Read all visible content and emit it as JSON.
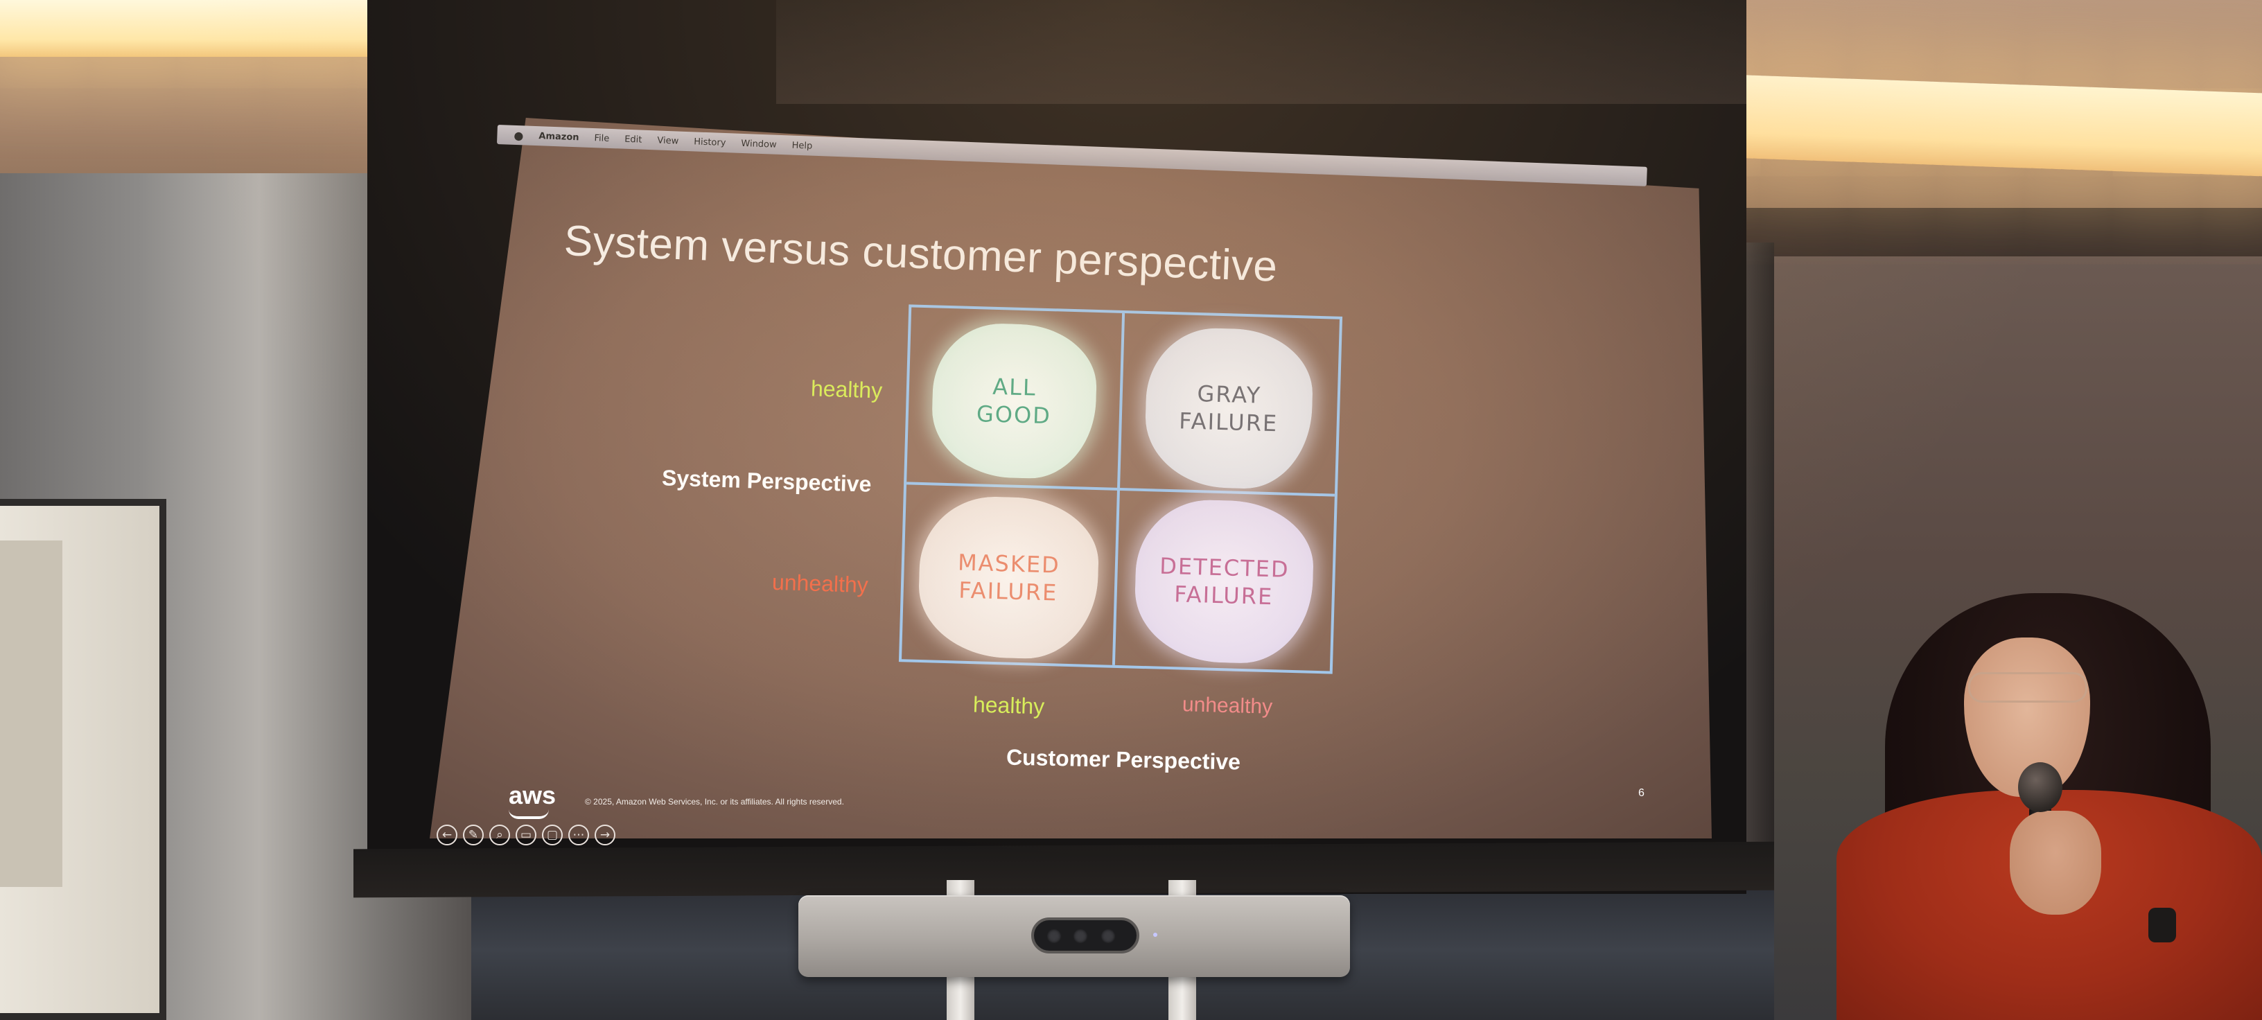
{
  "menubar": {
    "apple_icon": "apple-icon",
    "items": [
      "Amazon",
      "File",
      "Edit",
      "View",
      "History",
      "Window",
      "Help"
    ]
  },
  "slide": {
    "title": "System versus customer perspective",
    "y_axis_label": "System Perspective",
    "y_healthy": "healthy",
    "y_unhealthy": "unhealthy",
    "x_axis_label": "Customer Perspective",
    "x_healthy": "healthy",
    "x_unhealthy": "unhealthy",
    "quadrants": {
      "top_left": [
        "ALL",
        "GOOD"
      ],
      "top_right": [
        "GRAY",
        "FAILURE"
      ],
      "bottom_left": [
        "MASKED",
        "FAILURE"
      ],
      "bottom_right": [
        "DETECTED",
        "FAILURE"
      ]
    },
    "logo": "aws",
    "copyright": "© 2025, Amazon Web Services, Inc. or its affiliates. All rights reserved.",
    "page_number": "6",
    "colors": {
      "healthy": "#d7ef5a",
      "unhealthy": "#f26c4a",
      "grid": "#9fc7ee",
      "all_good": "#4fa886",
      "gray_failure": "#6b6b73",
      "masked_failure": "#ea8a6e",
      "detected_failure": "#c46a98"
    }
  },
  "presenter_toolbar": {
    "icons": [
      "back-arrow-icon",
      "pen-icon",
      "zoom-icon",
      "subtitles-icon",
      "slides-icon",
      "more-icon",
      "forward-arrow-icon"
    ],
    "glyphs": [
      "←",
      "✎",
      "⌕",
      "▭",
      "▢",
      "⋯",
      "→"
    ]
  }
}
